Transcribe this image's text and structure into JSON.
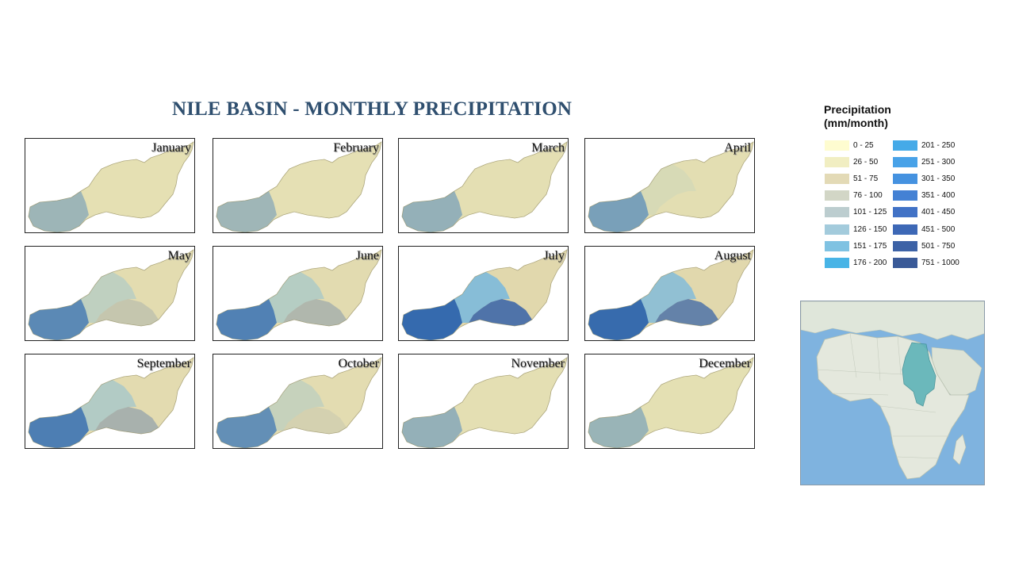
{
  "title": "NILE BASIN - MONTHLY PRECIPITATION",
  "months": [
    "January",
    "February",
    "March",
    "April",
    "May",
    "June",
    "July",
    "August",
    "September",
    "October",
    "November",
    "December"
  ],
  "legend": {
    "title_line1": "Precipitation",
    "title_line2": "(mm/month)",
    "classes": [
      {
        "label": "0 - 25",
        "color": "#fefcd0"
      },
      {
        "label": "26 - 50",
        "color": "#f1eec2"
      },
      {
        "label": "51 - 75",
        "color": "#e3dab6"
      },
      {
        "label": "76 - 100",
        "color": "#d2d6c6"
      },
      {
        "label": "101 - 125",
        "color": "#bccdcf"
      },
      {
        "label": "126 - 150",
        "color": "#a3cbdc"
      },
      {
        "label": "151 - 175",
        "color": "#7fc2e2"
      },
      {
        "label": "176 - 200",
        "color": "#48b4e6"
      },
      {
        "label": "201 - 250",
        "color": "#45aae8"
      },
      {
        "label": "251 - 300",
        "color": "#48a2e8"
      },
      {
        "label": "301 - 350",
        "color": "#4592e0"
      },
      {
        "label": "351 - 400",
        "color": "#4481d4"
      },
      {
        "label": "401 - 450",
        "color": "#4172c6"
      },
      {
        "label": "451 - 500",
        "color": "#3d68b6"
      },
      {
        "label": "501 - 750",
        "color": "#3d62a6"
      },
      {
        "label": "751 - 1000",
        "color": "#3a5a98"
      }
    ]
  },
  "wetness": [
    0.12,
    0.1,
    0.22,
    0.38,
    0.55,
    0.62,
    0.95,
    0.88,
    0.65,
    0.5,
    0.22,
    0.15
  ]
}
